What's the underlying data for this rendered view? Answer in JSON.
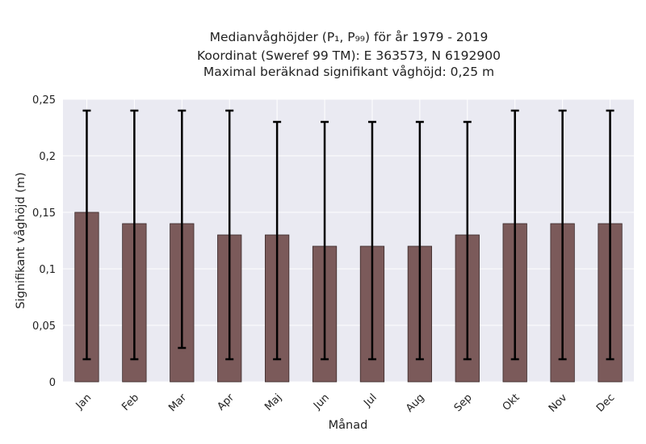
{
  "chart_data": {
    "type": "bar",
    "title_lines": [
      "Medianvåghöjder (P₁, P₉₉) för år 1979 - 2019",
      "Koordinat (Sweref 99 TM): E 363573, N 6192900",
      "Maximal beräknad signifikant våghöjd: 0,25 m"
    ],
    "xlabel": "Månad",
    "ylabel": "Signifikant våghöjd (m)",
    "categories": [
      "Jan",
      "Feb",
      "Mar",
      "Apr",
      "Maj",
      "Jun",
      "Jul",
      "Aug",
      "Sep",
      "Okt",
      "Nov",
      "Dec"
    ],
    "values": [
      0.15,
      0.14,
      0.14,
      0.13,
      0.13,
      0.12,
      0.12,
      0.12,
      0.13,
      0.14,
      0.14,
      0.14
    ],
    "p1": [
      0.02,
      0.02,
      0.03,
      0.02,
      0.02,
      0.02,
      0.02,
      0.02,
      0.02,
      0.02,
      0.02,
      0.02
    ],
    "p99": [
      0.24,
      0.24,
      0.24,
      0.24,
      0.23,
      0.23,
      0.23,
      0.23,
      0.23,
      0.24,
      0.24,
      0.24
    ],
    "ylim": [
      0,
      0.25
    ],
    "yticks": [
      0,
      0.05,
      0.1,
      0.15,
      0.2,
      0.25
    ],
    "ytick_labels": [
      "0",
      "0,05",
      "0,1",
      "0,15",
      "0,2",
      "0,25"
    ],
    "grid": true,
    "colors": {
      "bar": "#7b5a5a",
      "bar_edge": "#3a2a2a",
      "error": "#000000",
      "plot_bg": "#eaeaf2",
      "grid": "#ffffff"
    }
  }
}
